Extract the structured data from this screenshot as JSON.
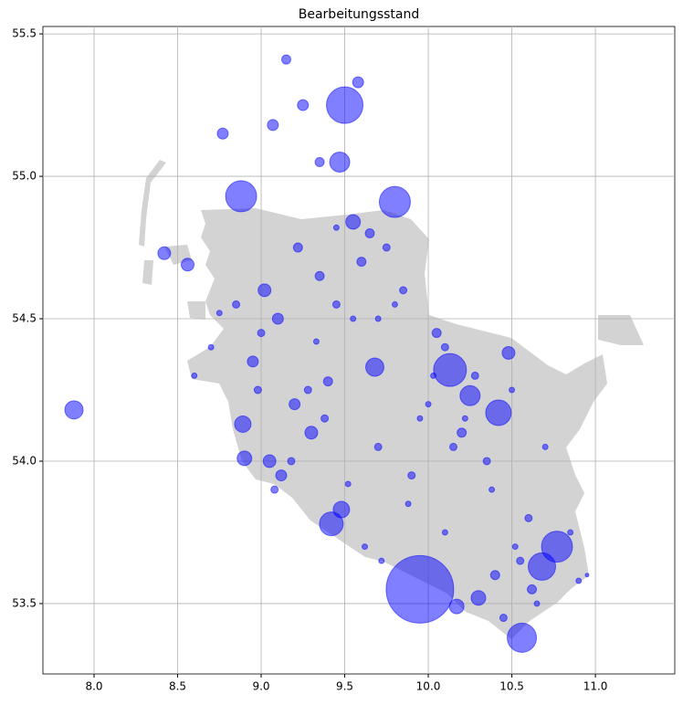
{
  "chart_data": {
    "type": "scatter",
    "title": "Bearbeitungsstand",
    "xlim": [
      7.694,
      11.475
    ],
    "ylim": [
      53.253,
      55.526
    ],
    "xticks": [
      {
        "value": 8,
        "label": "8.0"
      },
      8.5,
      {
        "value": 9,
        "label": "9.0"
      },
      9.5,
      {
        "value": 10,
        "label": "10.0"
      },
      10.5,
      {
        "value": 11,
        "label": "11.0"
      }
    ],
    "yticks": [
      53.5,
      {
        "value": 54,
        "label": "54.0"
      },
      54.5,
      {
        "value": 55,
        "label": "55.0"
      },
      55.5
    ],
    "grid": true,
    "color": "#0000ff",
    "alpha": 0.5,
    "x": [
      9.95,
      9.5,
      9.8,
      8.88,
      10.77,
      10.56,
      10.68,
      10.42,
      10.13,
      10.25,
      9.42,
      9.47,
      7.88,
      9.48,
      8.89,
      8.9,
      9.68,
      10.3,
      10.17,
      10.48,
      9.55,
      8.42,
      8.56,
      9.58,
      9.25,
      9.07,
      9.15,
      8.77,
      9.35,
      9.65,
      9.02,
      9.1,
      8.95,
      9.2,
      9.3,
      9.05,
      9.12,
      9.4,
      9.6,
      9.75,
      9.85,
      10.05,
      10.2,
      10.35,
      10.6,
      10.62,
      10.55,
      10.4,
      10.45,
      9.9,
      9.7,
      10.0,
      10.1,
      9.45,
      9.35,
      9.22,
      9.0,
      8.85,
      8.7,
      8.6,
      8.75,
      9.28,
      9.38,
      9.52,
      9.62,
      9.72,
      9.88,
      10.15,
      10.28,
      10.5,
      10.7,
      10.85,
      10.9,
      9.18,
      9.08,
      8.98,
      9.33,
      9.55,
      9.8,
      10.03,
      10.22,
      10.38,
      10.52,
      10.65,
      10.95,
      9.95,
      10.1,
      9.7,
      9.45
    ],
    "y": [
      53.55,
      55.25,
      54.91,
      54.93,
      53.7,
      53.38,
      53.63,
      54.17,
      54.32,
      54.23,
      53.78,
      55.05,
      54.18,
      53.83,
      54.13,
      54.01,
      54.33,
      53.52,
      53.49,
      54.38,
      54.84,
      54.73,
      54.69,
      55.33,
      55.25,
      55.18,
      55.41,
      55.15,
      55.05,
      54.8,
      54.6,
      54.5,
      54.35,
      54.2,
      54.1,
      54.0,
      53.95,
      54.28,
      54.7,
      54.75,
      54.6,
      54.45,
      54.1,
      54.0,
      53.8,
      53.55,
      53.65,
      53.6,
      53.45,
      53.95,
      54.05,
      54.2,
      54.4,
      54.55,
      54.65,
      54.75,
      54.45,
      54.55,
      54.4,
      54.3,
      54.52,
      54.25,
      54.15,
      53.92,
      53.7,
      53.65,
      53.85,
      54.05,
      54.3,
      54.25,
      54.05,
      53.75,
      53.58,
      54.0,
      53.9,
      54.25,
      54.42,
      54.5,
      54.55,
      54.3,
      54.15,
      53.9,
      53.7,
      53.5,
      53.6,
      54.15,
      53.75,
      54.5,
      54.82
    ],
    "sizes": [
      5476,
      1600,
      1156,
      1156,
      1156,
      1024,
      900,
      784,
      1296,
      484,
      676,
      484,
      400,
      324,
      324,
      256,
      400,
      256,
      256,
      196,
      256,
      196,
      196,
      144,
      144,
      144,
      100,
      144,
      100,
      100,
      196,
      144,
      144,
      144,
      196,
      196,
      144,
      100,
      100,
      64,
      64,
      100,
      100,
      64,
      64,
      100,
      64,
      100,
      64,
      64,
      64,
      36,
      64,
      64,
      100,
      100,
      64,
      64,
      36,
      36,
      36,
      64,
      64,
      36,
      36,
      36,
      36,
      64,
      64,
      36,
      36,
      36,
      36,
      64,
      64,
      64,
      36,
      36,
      36,
      36,
      36,
      36,
      36,
      36,
      16,
      36,
      36,
      36,
      36
    ]
  }
}
